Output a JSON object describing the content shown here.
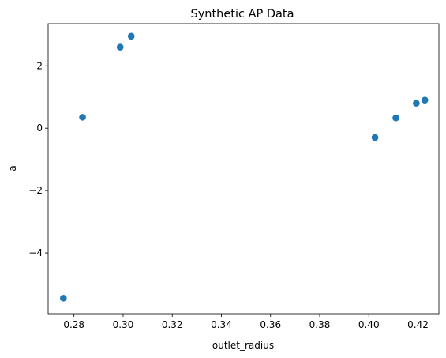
{
  "chart_data": {
    "type": "scatter",
    "title": "Synthetic AP Data",
    "xlabel": "outlet_radius",
    "ylabel": "a",
    "xlim": [
      0.2695,
      0.4285
    ],
    "ylim": [
      -5.95,
      3.35
    ],
    "x_ticks": [
      0.28,
      0.3,
      0.32,
      0.34,
      0.36,
      0.38,
      0.4,
      0.42
    ],
    "x_tick_labels": [
      "0.28",
      "0.30",
      "0.32",
      "0.34",
      "0.36",
      "0.38",
      "0.40",
      "0.42"
    ],
    "y_ticks": [
      -4,
      -2,
      0,
      2
    ],
    "y_tick_labels": [
      "−4",
      "−2",
      "0",
      "2"
    ],
    "grid": false,
    "series": [
      {
        "name": "data",
        "color": "#1f77b4",
        "points": [
          {
            "x": 0.2757,
            "y": -5.45
          },
          {
            "x": 0.2835,
            "y": 0.35
          },
          {
            "x": 0.2988,
            "y": 2.6
          },
          {
            "x": 0.3033,
            "y": 2.95
          },
          {
            "x": 0.4025,
            "y": -0.3
          },
          {
            "x": 0.411,
            "y": 0.33
          },
          {
            "x": 0.4193,
            "y": 0.8
          },
          {
            "x": 0.4228,
            "y": 0.9
          }
        ]
      }
    ]
  }
}
